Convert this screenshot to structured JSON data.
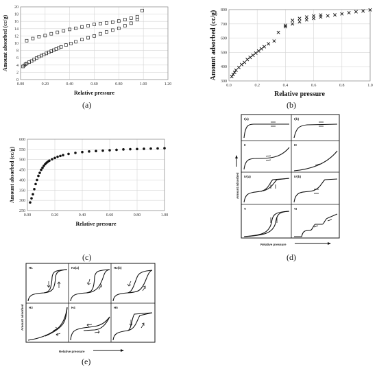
{
  "chart_data": [
    {
      "id": "a",
      "type": "scatter",
      "caption": "(a)",
      "xlabel": "Relative pressure",
      "ylabel": "Amount absorbed (cc/g)",
      "xlim": [
        0,
        1.2
      ],
      "ylim": [
        0,
        20
      ],
      "xticks": [
        "0.00",
        "0.20",
        "0.40",
        "0.60",
        "0.80",
        "1.00",
        "1.20"
      ],
      "yticks": [
        "0",
        "2",
        "4",
        "6",
        "8",
        "10",
        "12",
        "14",
        "16",
        "18",
        "20"
      ],
      "grid": true,
      "marker": "square",
      "series": [
        {
          "x": [
            0.02,
            0.03,
            0.04,
            0.05,
            0.07,
            0.09,
            0.11,
            0.13,
            0.15,
            0.17,
            0.19,
            0.21,
            0.23,
            0.25,
            0.27,
            0.29,
            0.31,
            0.33,
            0.37,
            0.41,
            0.45,
            0.5,
            0.55,
            0.6,
            0.65,
            0.7,
            0.75,
            0.8,
            0.85,
            0.9,
            0.95
          ],
          "y": [
            3.6,
            3.9,
            4.2,
            4.4,
            4.8,
            5.1,
            5.5,
            5.9,
            6.3,
            6.6,
            6.9,
            7.2,
            7.5,
            7.8,
            8.1,
            8.4,
            8.7,
            9.0,
            9.5,
            9.9,
            10.4,
            11.0,
            11.5,
            12.0,
            12.6,
            13.1,
            13.6,
            14.1,
            14.8,
            15.5,
            16.5
          ]
        },
        {
          "x": [
            0.05,
            0.1,
            0.15,
            0.2,
            0.25,
            0.3,
            0.35,
            0.4,
            0.45,
            0.5,
            0.55,
            0.6,
            0.65,
            0.7,
            0.75,
            0.8,
            0.85,
            0.9,
            0.95,
            0.99
          ],
          "y": [
            10.7,
            11.3,
            11.8,
            12.1,
            12.6,
            13.0,
            13.4,
            13.8,
            14.1,
            14.5,
            14.8,
            15.2,
            15.4,
            15.6,
            15.8,
            16.1,
            16.5,
            16.9,
            17.3,
            19.0
          ]
        }
      ]
    },
    {
      "id": "b",
      "type": "scatter",
      "caption": "(b)",
      "xlabel": "Relative pressure",
      "ylabel": "Amount adsorbed (cc/g)",
      "xlim": [
        0,
        1.0
      ],
      "ylim": [
        300,
        800
      ],
      "xticks": [
        "0.0",
        "0.2",
        "0.4",
        "0.6",
        "0.8",
        "1.0"
      ],
      "yticks": [
        "300",
        "400",
        "500",
        "600",
        "700",
        "800"
      ],
      "grid": true,
      "marker": "x",
      "series": [
        {
          "x": [
            0.02,
            0.03,
            0.04,
            0.05,
            0.07,
            0.09,
            0.11,
            0.13,
            0.15,
            0.17,
            0.19,
            0.21,
            0.23,
            0.25,
            0.28,
            0.32,
            0.4,
            0.45,
            0.5,
            0.55,
            0.6,
            0.65,
            0.7,
            0.75,
            0.8,
            0.85,
            0.9,
            0.95,
            1.0
          ],
          "y": [
            330,
            345,
            360,
            375,
            395,
            415,
            430,
            450,
            465,
            480,
            495,
            510,
            525,
            540,
            560,
            580,
            680,
            700,
            715,
            728,
            738,
            748,
            756,
            763,
            770,
            778,
            785,
            790,
            798
          ]
        },
        {
          "x": [
            0.35,
            0.4,
            0.45,
            0.5,
            0.55,
            0.6,
            0.65
          ],
          "y": [
            640,
            690,
            725,
            738,
            748,
            756,
            762
          ]
        }
      ]
    },
    {
      "id": "c",
      "type": "scatter",
      "caption": "(c)",
      "xlabel": "Relative pressure",
      "ylabel": "Amount absorbed (cc/g)",
      "xlim": [
        0,
        1.0
      ],
      "ylim": [
        250,
        600
      ],
      "xticks": [
        "0.00",
        "0.20",
        "0.40",
        "0.60",
        "0.80",
        "1.00"
      ],
      "yticks": [
        "250",
        "300",
        "350",
        "400",
        "450",
        "500",
        "550",
        "600"
      ],
      "grid": true,
      "marker": "dot",
      "series": [
        {
          "x": [
            0.02,
            0.03,
            0.04,
            0.05,
            0.06,
            0.07,
            0.08,
            0.09,
            0.1,
            0.11,
            0.12,
            0.13,
            0.14,
            0.15,
            0.16,
            0.18,
            0.2,
            0.22,
            0.24,
            0.26,
            0.3,
            0.35,
            0.4,
            0.45,
            0.5,
            0.55,
            0.6,
            0.65,
            0.7,
            0.75,
            0.8,
            0.85,
            0.9,
            0.95,
            1.0
          ],
          "y": [
            290,
            310,
            330,
            355,
            380,
            400,
            420,
            435,
            450,
            460,
            470,
            478,
            485,
            490,
            495,
            502,
            508,
            514,
            518,
            522,
            528,
            533,
            537,
            540,
            542,
            544,
            546,
            548,
            550,
            551,
            552,
            553,
            554,
            555,
            556
          ]
        }
      ]
    }
  ],
  "iupac_isotherms": {
    "caption": "(d)",
    "ylabel": "Amount adsorbed",
    "xlabel": "Relative pressure",
    "panels": [
      "I(a)",
      "I(b)",
      "II",
      "III",
      "IV(a)",
      "IV(b)",
      "V",
      "VI"
    ]
  },
  "hysteresis_loops": {
    "caption": "(e)",
    "ylabel": "Amount adsorbed",
    "xlabel": "Relative pressure",
    "panels": [
      "H1",
      "H2(a)",
      "H2(b)",
      "H3",
      "H4",
      "H5"
    ]
  }
}
